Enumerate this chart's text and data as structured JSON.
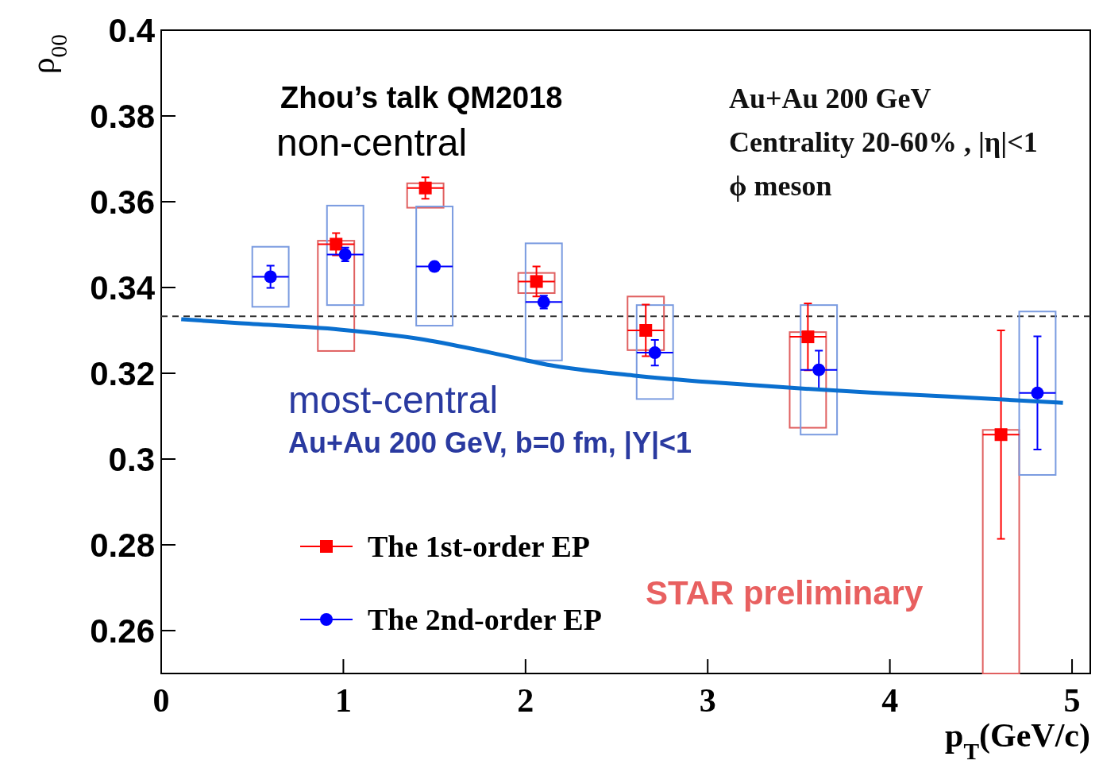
{
  "chart_data": {
    "type": "scatter",
    "xlabel": "p$_{T}$(GeV/c)",
    "ylabel": "ρ$_{00}$",
    "xlim": [
      0,
      5.1
    ],
    "ylim": [
      0.25,
      0.4
    ],
    "xticks": [
      0,
      1,
      2,
      3,
      4,
      5
    ],
    "yticks": [
      0.26,
      0.28,
      0.3,
      0.32,
      0.34,
      0.36,
      0.38,
      0.4
    ],
    "legend": "bottom left",
    "grid": false,
    "series": [
      {
        "type": "bar",
        "color": "#e06060",
        "x": [
          0.96,
          1.45,
          2.06,
          2.66,
          3.55,
          4.61
        ],
        "base": [
          0.3252,
          0.3586,
          0.3387,
          0.3254,
          0.3073,
          0.25
        ],
        "values": [
          0.0257,
          0.0057,
          0.0047,
          0.0125,
          0.0223,
          0.0568
        ]
      },
      {
        "type": "bar",
        "color": "#7a9be0",
        "x": [
          0.6,
          1.01,
          1.5,
          2.1,
          2.71,
          3.61,
          4.81
        ],
        "base": [
          0.3355,
          0.3359,
          0.3311,
          0.323,
          0.314,
          0.3057,
          0.2963
        ],
        "values": [
          0.014,
          0.0232,
          0.0278,
          0.0273,
          0.0219,
          0.0302,
          0.0381
        ]
      },
      {
        "name": "The 1st-order EP",
        "color": "#ff0000",
        "marker": "square",
        "x": [
          0.96,
          1.45,
          2.06,
          2.66,
          3.55,
          4.61
        ],
        "values": [
          0.3501,
          0.3632,
          0.3414,
          0.33,
          0.3285,
          0.3057
        ],
        "errors": [
          0.0026,
          0.0025,
          0.0035,
          0.006,
          0.0078,
          0.0243
        ],
        "xerrors": [
          0.1,
          0.1,
          0.1,
          0.1,
          0.1,
          0.1
        ]
      },
      {
        "name": "The 2nd-order EP",
        "color": "#0000ff",
        "marker": "circle",
        "x": [
          0.6,
          1.01,
          1.5,
          2.1,
          2.71,
          3.61,
          4.81
        ],
        "values": [
          0.3425,
          0.3477,
          0.3449,
          0.3366,
          0.3248,
          0.3208,
          0.3154
        ],
        "errors": [
          0.0026,
          0.0016,
          0.001,
          0.0015,
          0.003,
          0.0045,
          0.0132
        ],
        "xerrors": [
          0.1,
          0.1,
          0.1,
          0.1,
          0.1,
          0.1,
          0.1
        ]
      },
      {
        "type": "line",
        "color": "#0a6fcf",
        "x": [
          0.11,
          0.42,
          0.98,
          1.42,
          1.81,
          2.16,
          2.59,
          3.02,
          3.46,
          3.89,
          4.32,
          4.95
        ],
        "values": [
          0.3326,
          0.3317,
          0.3302,
          0.328,
          0.3248,
          0.3217,
          0.3195,
          0.3179,
          0.3166,
          0.3155,
          0.3146,
          0.3131
        ]
      }
    ],
    "ref_lines": [
      {
        "axis": "y",
        "value": 0.3333,
        "color": "#333333",
        "line_style": "dashed"
      }
    ],
    "annotations": [
      "Zhou’s talk QM2018",
      "non-central",
      "Au+Au 200 GeV",
      "Centrality 20-60% , |η|<1",
      "ϕ meson",
      "most-central",
      "Au+Au 200 GeV, b=0 fm, |Y|<1",
      "STAR preliminary"
    ]
  }
}
